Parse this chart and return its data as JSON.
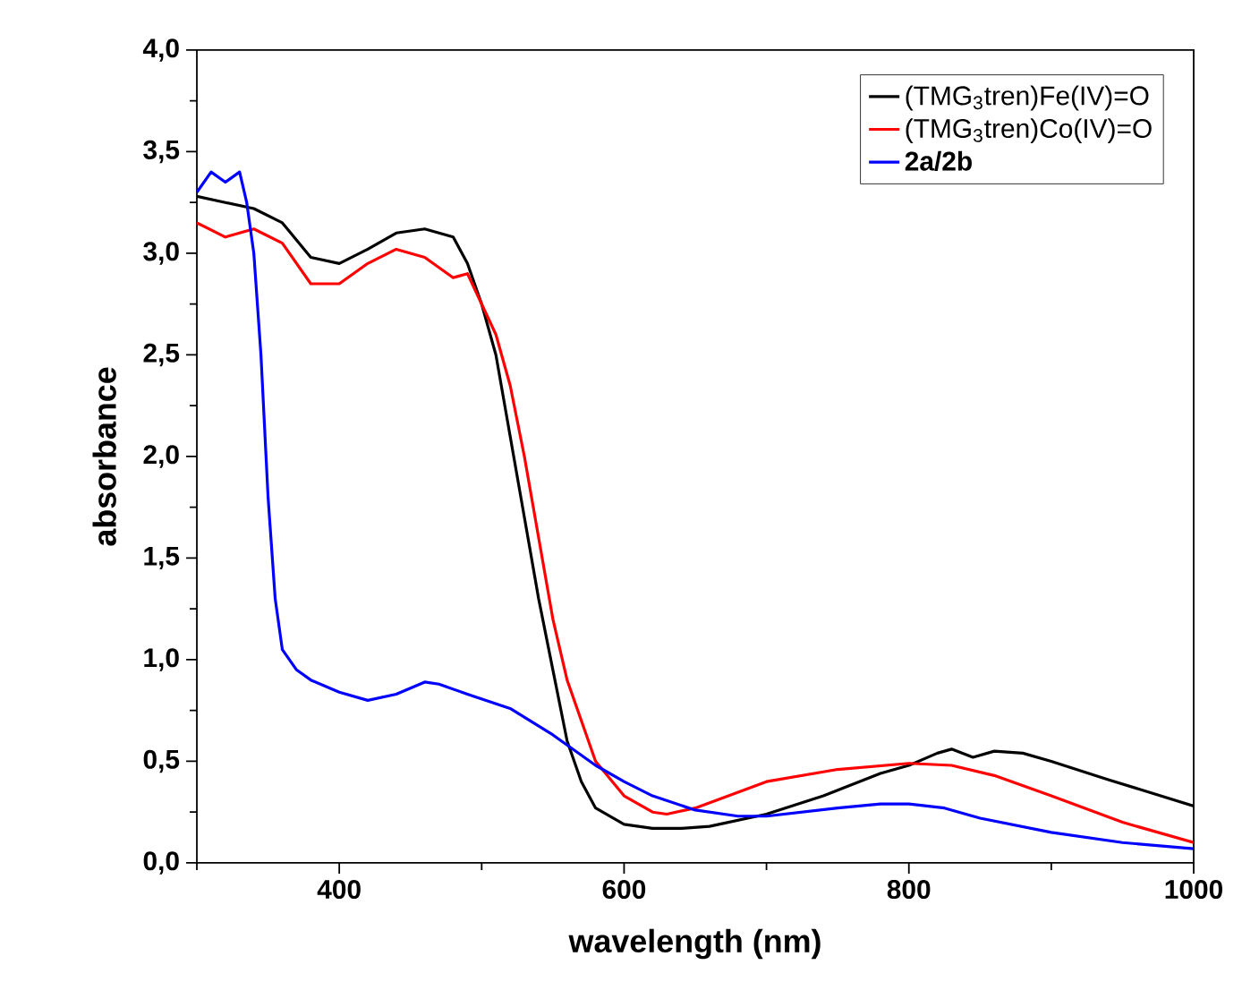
{
  "chart_data": {
    "type": "line",
    "xlabel": "wavelength (nm)",
    "ylabel": "absorbance",
    "legend": "top right",
    "grid": false,
    "marker": "none",
    "line_style": "solid",
    "xlim": [
      300,
      1000
    ],
    "ylim": [
      0,
      4
    ],
    "xticks": [
      {
        "value": 300,
        "label": null
      },
      400,
      {
        "value": 500,
        "label": null
      },
      600,
      {
        "value": 700,
        "label": null
      },
      800,
      {
        "value": 900,
        "label": null
      },
      1000
    ],
    "yticks": [
      {
        "value": 0,
        "label": "0,0"
      },
      {
        "value": 0.25,
        "label": null
      },
      {
        "value": 0.5,
        "label": "0,5"
      },
      {
        "value": 0.75,
        "label": null
      },
      {
        "value": 1,
        "label": "1,0"
      },
      {
        "value": 1.25,
        "label": null
      },
      {
        "value": 1.5,
        "label": "1,5"
      },
      {
        "value": 1.75,
        "label": null
      },
      {
        "value": 2,
        "label": "2,0"
      },
      {
        "value": 2.25,
        "label": null
      },
      {
        "value": 2.5,
        "label": "2,5"
      },
      {
        "value": 2.75,
        "label": null
      },
      {
        "value": 3,
        "label": "3,0"
      },
      {
        "value": 3.25,
        "label": null
      },
      {
        "value": 3.5,
        "label": "3,5"
      },
      {
        "value": 3.75,
        "label": null
      },
      {
        "value": 4,
        "label": "4,0"
      }
    ],
    "series": [
      {
        "name": "(TMG$_{3}$tren)Fe(IV)=O",
        "color": "#000000",
        "x": [
          300,
          320,
          340,
          360,
          380,
          400,
          420,
          440,
          460,
          480,
          490,
          500,
          510,
          520,
          530,
          540,
          550,
          560,
          570,
          580,
          600,
          620,
          640,
          660,
          700,
          740,
          780,
          800,
          820,
          830,
          845,
          860,
          880,
          900,
          940,
          1000
        ],
        "values": [
          3.28,
          3.25,
          3.22,
          3.15,
          2.98,
          2.95,
          3.02,
          3.1,
          3.12,
          3.08,
          2.95,
          2.75,
          2.5,
          2.1,
          1.7,
          1.3,
          0.95,
          0.6,
          0.4,
          0.27,
          0.19,
          0.17,
          0.17,
          0.18,
          0.24,
          0.33,
          0.44,
          0.48,
          0.54,
          0.56,
          0.52,
          0.55,
          0.54,
          0.5,
          0.41,
          0.28
        ]
      },
      {
        "name": "(TMG$_{3}$tren)Co(IV)=O",
        "color": "#ff0000",
        "x": [
          300,
          320,
          340,
          360,
          380,
          400,
          420,
          440,
          460,
          480,
          490,
          500,
          510,
          520,
          530,
          540,
          550,
          560,
          580,
          600,
          620,
          630,
          650,
          700,
          750,
          800,
          830,
          860,
          900,
          950,
          1000
        ],
        "values": [
          3.15,
          3.08,
          3.12,
          3.05,
          2.85,
          2.85,
          2.95,
          3.02,
          2.98,
          2.88,
          2.9,
          2.75,
          2.6,
          2.35,
          2.0,
          1.6,
          1.2,
          0.9,
          0.5,
          0.33,
          0.25,
          0.24,
          0.27,
          0.4,
          0.46,
          0.49,
          0.48,
          0.43,
          0.33,
          0.2,
          0.1
        ]
      },
      {
        "name": "**2a/2b**",
        "color": "#0000ff",
        "x": [
          300,
          310,
          320,
          330,
          335,
          340,
          345,
          350,
          355,
          360,
          370,
          380,
          400,
          420,
          440,
          460,
          470,
          490,
          520,
          550,
          580,
          600,
          620,
          650,
          680,
          700,
          750,
          780,
          800,
          825,
          850,
          900,
          950,
          1000
        ],
        "values": [
          3.3,
          3.4,
          3.35,
          3.4,
          3.25,
          3.0,
          2.5,
          1.8,
          1.3,
          1.05,
          0.95,
          0.9,
          0.84,
          0.8,
          0.83,
          0.89,
          0.88,
          0.83,
          0.76,
          0.63,
          0.48,
          0.4,
          0.33,
          0.26,
          0.23,
          0.23,
          0.27,
          0.29,
          0.29,
          0.27,
          0.22,
          0.15,
          0.1,
          0.07
        ]
      }
    ]
  }
}
